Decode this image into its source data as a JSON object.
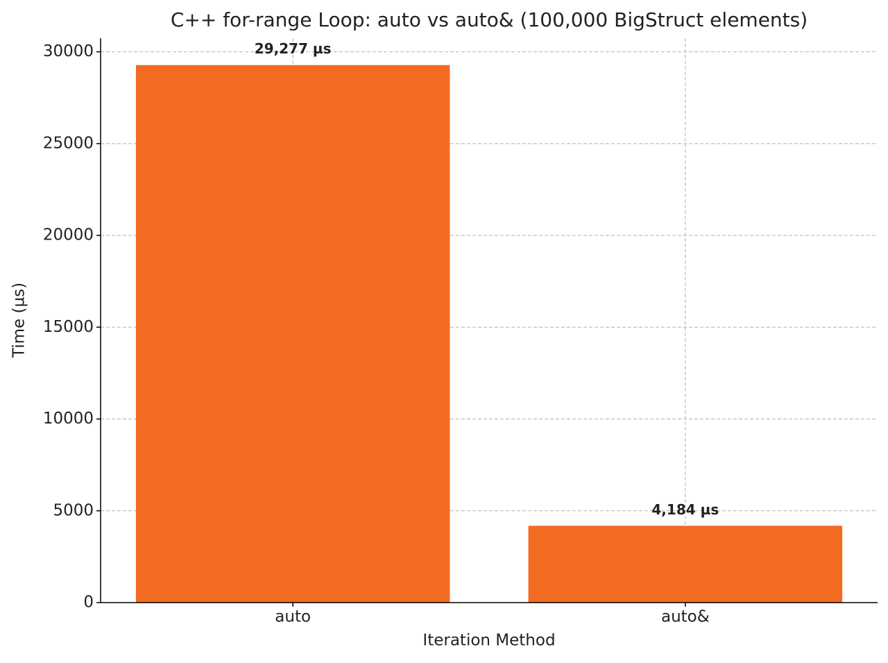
{
  "chart_data": {
    "type": "bar",
    "title": "C++ for-range Loop: auto vs auto& (100,000 BigStruct elements)",
    "x_label": "Iteration Method",
    "y_label": "Time (µs)",
    "categories": [
      "auto",
      "auto&"
    ],
    "values": [
      29277,
      4184
    ],
    "value_labels": [
      "29,277 µs",
      "4,184 µs"
    ],
    "color": "#f26b21",
    "ylim": [
      0,
      30741
    ],
    "yticks": [
      0,
      5000,
      10000,
      15000,
      20000,
      25000,
      30000
    ],
    "grid": true
  }
}
